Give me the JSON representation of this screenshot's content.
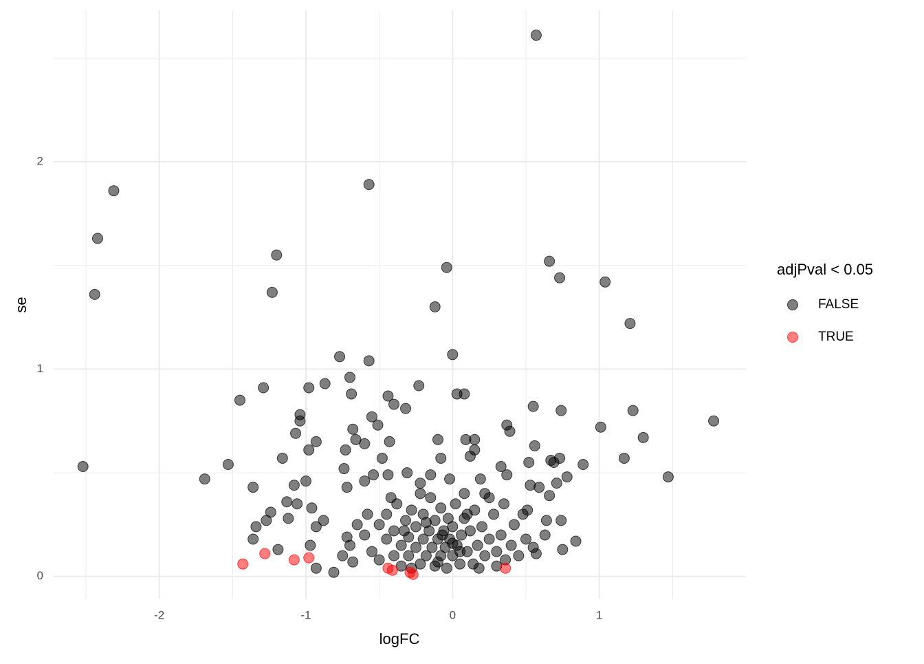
{
  "chart_data": {
    "type": "scatter",
    "x_label": "logFC",
    "y_label": "se",
    "legend_title": "adjPval < 0.05",
    "legend_position": "right",
    "xlim": [
      -2.72,
      2.0
    ],
    "ylim": [
      -0.107,
      2.73
    ],
    "xticks": [
      -2,
      -1,
      0,
      1
    ],
    "yticks": [
      0,
      1,
      2
    ],
    "xminor": [
      -2.5,
      -1.5,
      -0.5,
      0.5,
      1.5
    ],
    "yminor": [
      0.5,
      1.5,
      2.5
    ],
    "grid": true,
    "alpha": 0.5,
    "series": [
      {
        "name": "FALSE",
        "color": "#000000",
        "x": [
          0.57,
          -0.57,
          -2.31,
          -2.42,
          -2.44,
          -1.2,
          -1.23,
          -0.04,
          -0.12,
          0.66,
          0.73,
          1.04,
          1.21,
          -2.52,
          -0.77,
          -0.57,
          0,
          -1.45,
          -1.29,
          -0.98,
          -0.87,
          -0.7,
          -0.69,
          -0.44,
          -0.32,
          -0.23,
          0.03,
          0.08,
          0.55,
          0.74,
          1.23,
          1.78,
          1.01,
          1.3,
          1.17,
          1.47,
          0.89,
          0.78,
          -1.69,
          -1.53,
          -1.36,
          -1.16,
          -1.04,
          -1.04,
          -1.07,
          -0.93,
          -0.98,
          -1.08,
          -1.0,
          -1.13,
          -1.24,
          -1.27,
          -1.34,
          -1.36,
          -1.19,
          -1.12,
          -1.06,
          -0.96,
          -0.88,
          -0.93,
          -0.97,
          -0.93,
          -0.81,
          -0.68,
          -0.66,
          -0.6,
          -0.55,
          -0.51,
          -0.48,
          -0.43,
          -0.4,
          -0.1,
          -0.08,
          0.09,
          0.15,
          0.15,
          0.12,
          0.37,
          0.39,
          0.56,
          0.52,
          0.67,
          0.73,
          0.69,
          0.33,
          0.37,
          0.53,
          0.59,
          0.71,
          0.66,
          0.51,
          0.64,
          0.74,
          0.63,
          0.75,
          0.84,
          0.57,
          -0.73,
          -0.74,
          -0.72,
          -0.6,
          -0.54,
          -0.44,
          -0.31,
          -0.22,
          -0.15,
          -0.02,
          0.19,
          0.22,
          -0.6,
          -0.55,
          -0.5,
          -0.5,
          -0.45,
          -0.45,
          -0.4,
          -0.4,
          -0.38,
          -0.35,
          -0.35,
          -0.32,
          -0.3,
          -0.3,
          -0.28,
          -0.25,
          -0.25,
          -0.22,
          -0.2,
          -0.2,
          -0.18,
          -0.16,
          -0.15,
          -0.14,
          -0.12,
          -0.12,
          -0.1,
          -0.08,
          -0.08,
          -0.06,
          -0.05,
          -0.04,
          -0.03,
          -0.02,
          0,
          0,
          0.02,
          0.03,
          0.05,
          0.06,
          0.08,
          0.1,
          0.12,
          0.14,
          0.15,
          0.17,
          0.2,
          0.22,
          0.25,
          0.28,
          0.3,
          0.33,
          0.36,
          0.4,
          0.42,
          0.45,
          -0.7,
          -0.75,
          -0.72,
          -0.65,
          -0.68,
          -0.58,
          0.5,
          0.55,
          0.48,
          0.35,
          -0.22,
          0.08,
          -0.42,
          0.25,
          -0.1,
          0.18,
          -0.28,
          0.3,
          -0.18,
          0.1,
          -0.33,
          0,
          -0.07,
          0.05
        ],
        "values": [
          2.61,
          1.89,
          1.86,
          1.63,
          1.36,
          1.55,
          1.37,
          1.49,
          1.3,
          1.52,
          1.44,
          1.42,
          1.22,
          0.53,
          1.06,
          1.04,
          1.07,
          0.85,
          0.91,
          0.91,
          0.93,
          0.96,
          0.88,
          0.87,
          0.81,
          0.92,
          0.88,
          0.88,
          0.82,
          0.8,
          0.8,
          0.75,
          0.72,
          0.67,
          0.57,
          0.48,
          0.54,
          0.48,
          0.47,
          0.54,
          0.43,
          0.57,
          0.78,
          0.75,
          0.69,
          0.65,
          0.61,
          0.44,
          0.46,
          0.36,
          0.31,
          0.27,
          0.24,
          0.18,
          0.13,
          0.28,
          0.35,
          0.33,
          0.27,
          0.24,
          0.15,
          0.04,
          0.02,
          0.71,
          0.66,
          0.64,
          0.77,
          0.73,
          0.57,
          0.65,
          0.83,
          0.66,
          0.57,
          0.66,
          0.66,
          0.61,
          0.58,
          0.73,
          0.7,
          0.63,
          0.55,
          0.56,
          0.57,
          0.55,
          0.53,
          0.49,
          0.44,
          0.43,
          0.45,
          0.39,
          0.32,
          0.27,
          0.27,
          0.2,
          0.13,
          0.17,
          0.11,
          0.61,
          0.52,
          0.43,
          0.46,
          0.49,
          0.49,
          0.5,
          0.45,
          0.49,
          0.47,
          0.47,
          0.4,
          0.2,
          0.12,
          0.25,
          0.08,
          0.18,
          0.3,
          0.1,
          0.22,
          0.35,
          0.15,
          0.05,
          0.27,
          0.19,
          0.1,
          0.32,
          0.14,
          0.24,
          0.06,
          0.18,
          0.3,
          0.1,
          0.22,
          0.38,
          0.14,
          0.05,
          0.27,
          0.18,
          0.1,
          0.33,
          0.22,
          0.14,
          0.04,
          0.28,
          0.18,
          0.1,
          0.24,
          0.35,
          0.15,
          0.06,
          0.2,
          0.28,
          0.12,
          0.22,
          0.06,
          0.32,
          0.15,
          0.24,
          0.1,
          0.18,
          0.3,
          0.12,
          0.2,
          0.08,
          0.15,
          0.25,
          0.1,
          0.15,
          0.1,
          0.19,
          0.25,
          0.07,
          0.3,
          0.18,
          0.14,
          0.3,
          0.35,
          0.4,
          0.4,
          0.38,
          0.38,
          0.07,
          0.04,
          0.04,
          0.05,
          0.26,
          0.3,
          0.22,
          0.16,
          0.2,
          0.12
        ]
      },
      {
        "name": "TRUE",
        "color": "#ff0000",
        "x": [
          -1.43,
          -1.28,
          -1.08,
          -0.98,
          -0.44,
          -0.41,
          -0.29,
          -0.27,
          0.36
        ],
        "values": [
          0.06,
          0.11,
          0.08,
          0.09,
          0.04,
          0.03,
          0.02,
          0.01,
          0.04
        ]
      }
    ]
  }
}
